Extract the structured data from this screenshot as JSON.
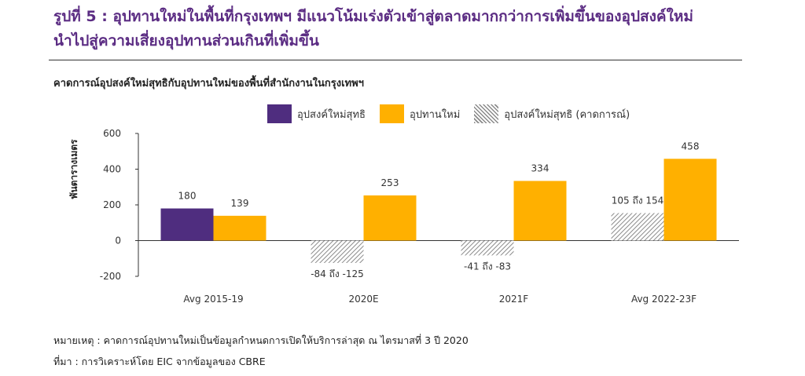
{
  "figure": {
    "title_line1": "รูปที่ 5 : อุปทานใหม่ในพื้นที่กรุงเทพฯ มีแนวโน้มเร่งตัวเข้าสู่ตลาดมากกว่าการเพิ่มขึ้นของอุปสงค์ใหม่",
    "title_line2": "นำไปสู่ความเสี่ยงอุปทานส่วนเกินที่เพิ่มขึ้น"
  },
  "chart_data": {
    "type": "bar",
    "title": "คาดการณ์อุปสงค์ใหม่สุทธิกับอุปทานใหม่ของพื้นที่สำนักงานในกรุงเทพฯ",
    "ylabel": "พันตารางเมตร",
    "xlabel": "",
    "ylim": [
      -200,
      600
    ],
    "yticks": [
      600,
      400,
      200,
      0,
      -200
    ],
    "grid": false,
    "legend_position": "top",
    "categories": [
      "Avg 2015-19",
      "2020E",
      "2021F",
      "Avg 2022-23F"
    ],
    "series": [
      {
        "name": "อุปสงค์ใหม่สุทธิ",
        "color": "#4f2d7f",
        "values": [
          180,
          null,
          null,
          null
        ],
        "labels": [
          "180",
          "",
          "",
          ""
        ]
      },
      {
        "name": "อุปทานใหม่",
        "color": "#ffb000",
        "values": [
          139,
          253,
          334,
          458
        ],
        "labels": [
          "139",
          "253",
          "334",
          "458"
        ]
      },
      {
        "name": "อุปสงค์ใหม่สุทธิ (คาดการณ์)",
        "pattern": "hatched",
        "ranges": [
          null,
          [
            -84,
            -125
          ],
          [
            -41,
            -83
          ],
          [
            105,
            154
          ]
        ],
        "labels": [
          "",
          "-84 ถึง -125",
          "-41 ถึง -83",
          "105 ถึง 154"
        ]
      }
    ]
  },
  "notes": {
    "remark": "หมายเหตุ : คาดการณ์อุปทานใหม่เป็นข้อมูลกำหนดการเปิดให้บริการล่าสุด ณ ไตรมาสที่ 3 ปี 2020",
    "source": "ที่มา : การวิเคราะห์โดย EIC จากข้อมูลของ CBRE"
  }
}
